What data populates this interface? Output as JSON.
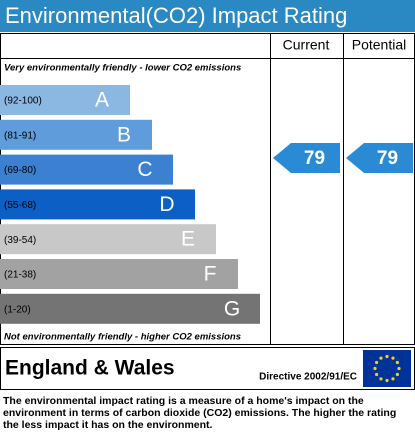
{
  "title": "Environmental(CO2) Impact Rating",
  "columns": {
    "current": "Current",
    "potential": "Potential"
  },
  "top_note": "Very environmentally friendly - lower CO2 emissions",
  "bands": [
    {
      "range": "(92-100)",
      "letter": "A"
    },
    {
      "range": "(81-91)",
      "letter": "B"
    },
    {
      "range": "(69-80)",
      "letter": "C"
    },
    {
      "range": "(55-68)",
      "letter": "D"
    },
    {
      "range": "(39-54)",
      "letter": "E"
    },
    {
      "range": "(21-38)",
      "letter": "F"
    },
    {
      "range": "(1-20)",
      "letter": "G"
    }
  ],
  "bottom_note": "Not environmentally friendly - higher CO2 emissions",
  "current": {
    "value": 79
  },
  "potential": {
    "value": 79
  },
  "footer": {
    "region": "England & Wales",
    "directive": "Directive 2002/91/EC",
    "description": "The environmental impact rating is a measure of a home's impact on the environment in terms of carbon dioxide (CO2) emissions. The higher the rating the less impact it has on the environment."
  }
}
